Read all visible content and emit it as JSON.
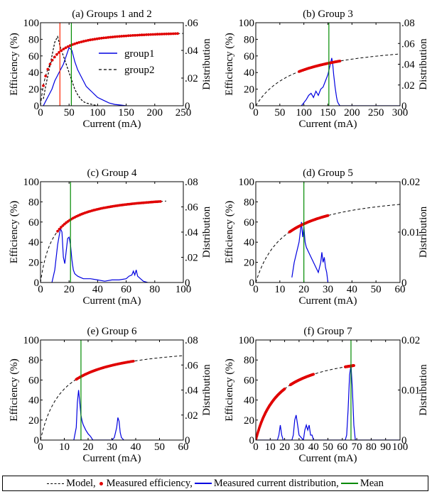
{
  "colors": {
    "model": "#000000",
    "measured": "#e00000",
    "distribution": "#0000e0",
    "mean": "#008a00",
    "second_line": "#ff2200"
  },
  "legend": {
    "model": "Model,",
    "measured": "Measured efficiency,",
    "distribution": "Measured current distribution,",
    "mean": "Mean"
  },
  "chart_data": [
    {
      "type": "line",
      "title": "(a) Groups 1 and 2",
      "xlabel": "Current (mA)",
      "ylabel": "Efficiency (%)",
      "y2label": "Distribution",
      "xlim": [
        0,
        250
      ],
      "ylim": [
        0,
        100
      ],
      "y2lim": [
        0,
        0.06
      ],
      "xticks": [
        0,
        50,
        100,
        150,
        200,
        250
      ],
      "yticks": [
        0,
        20,
        40,
        60,
        80,
        100
      ],
      "y2ticks": [
        0,
        0.02,
        0.04,
        0.06
      ],
      "xtick_labels": [
        "0",
        "50",
        "100",
        "150",
        "200",
        "250"
      ],
      "ytick_labels": [
        "0",
        "20",
        "40",
        "60",
        "80",
        "100"
      ],
      "y2tick_labels": [
        "0",
        ".02",
        ".04",
        ".06"
      ],
      "model": {
        "a": 92,
        "b": 14,
        "xmax": 250
      },
      "measured_range": [
        [
          5,
          240
        ]
      ],
      "means": [
        {
          "x": 34,
          "color": "second"
        },
        {
          "x": 54,
          "color": "mean"
        }
      ],
      "series": [
        {
          "name": "group1",
          "style": "solid",
          "x": [
            5,
            10,
            15,
            20,
            25,
            30,
            35,
            40,
            45,
            50,
            55,
            60,
            65,
            70,
            75,
            80,
            85,
            90,
            95,
            100,
            110,
            120,
            130,
            140,
            150
          ],
          "y": [
            0,
            0.004,
            0.008,
            0.012,
            0.018,
            0.022,
            0.026,
            0.03,
            0.036,
            0.042,
            0.04,
            0.032,
            0.026,
            0.022,
            0.018,
            0.014,
            0.012,
            0.01,
            0.008,
            0.006,
            0.004,
            0.002,
            0.001,
            0.0005,
            0
          ]
        },
        {
          "name": "group2",
          "style": "dashed",
          "x": [
            5,
            10,
            15,
            20,
            25,
            30,
            35,
            40,
            45,
            50,
            55,
            60,
            65,
            70,
            75,
            80,
            90,
            100
          ],
          "y": [
            0.005,
            0.016,
            0.026,
            0.036,
            0.046,
            0.05,
            0.042,
            0.036,
            0.03,
            0.024,
            0.018,
            0.012,
            0.008,
            0.005,
            0.003,
            0.002,
            0.001,
            0
          ]
        }
      ],
      "legend": "inside"
    },
    {
      "type": "line",
      "title": "(b) Group 3",
      "xlabel": "Current (mA)",
      "ylabel": "Efficiency (%)",
      "y2label": "Distribution",
      "xlim": [
        0,
        300
      ],
      "ylim": [
        0,
        100
      ],
      "y2lim": [
        0,
        0.08
      ],
      "xticks": [
        0,
        50,
        100,
        150,
        200,
        250,
        300
      ],
      "yticks": [
        0,
        20,
        40,
        60,
        80,
        100
      ],
      "y2ticks": [
        0,
        0.02,
        0.04,
        0.06,
        0.08
      ],
      "xtick_labels": [
        "0",
        "50",
        "100",
        "150",
        "200",
        "250",
        "300"
      ],
      "ytick_labels": [
        "0",
        "20",
        "40",
        "60",
        "80",
        "100"
      ],
      "y2tick_labels": [
        "0",
        ".02",
        ".04",
        ".06",
        ".08"
      ],
      "model": {
        "a": 80,
        "b": 85,
        "xmax": 300
      },
      "measured_range": [
        [
          90,
          175
        ]
      ],
      "means": [
        {
          "x": 152,
          "color": "mean"
        }
      ],
      "series": [
        {
          "name": "",
          "style": "solid",
          "x": [
            95,
            100,
            105,
            110,
            115,
            120,
            125,
            130,
            135,
            140,
            145,
            150,
            155,
            158,
            160,
            162,
            165,
            168,
            170,
            172,
            175,
            180,
            200,
            250,
            300
          ],
          "y": [
            0,
            0.003,
            0.006,
            0.01,
            0.012,
            0.008,
            0.014,
            0.01,
            0.016,
            0.018,
            0.024,
            0.03,
            0.04,
            0.046,
            0.04,
            0.03,
            0.018,
            0.008,
            0.004,
            0.002,
            0,
            0,
            0,
            0,
            0
          ]
        }
      ]
    },
    {
      "type": "line",
      "title": "(c) Group 4",
      "xlabel": "Current (mA)",
      "ylabel": "Efficiency (%)",
      "y2label": "Distribution",
      "xlim": [
        0,
        100
      ],
      "ylim": [
        0,
        100
      ],
      "y2lim": [
        0,
        0.08
      ],
      "xticks": [
        0,
        20,
        40,
        60,
        80,
        100
      ],
      "yticks": [
        0,
        20,
        40,
        60,
        80,
        100
      ],
      "y2ticks": [
        0,
        0.02,
        0.04,
        0.06,
        0.08
      ],
      "xtick_labels": [
        "0",
        "20",
        "40",
        "60",
        "80",
        "100"
      ],
      "ytick_labels": [
        "0",
        "20",
        "40",
        "60",
        "80",
        "100"
      ],
      "y2tick_labels": [
        "0",
        ".02",
        ".04",
        ".06",
        ".08"
      ],
      "model": {
        "a": 89,
        "b": 9,
        "xmax": 88
      },
      "measured_range": [
        [
          12,
          84
        ]
      ],
      "means": [
        {
          "x": 21,
          "color": "mean"
        }
      ],
      "series": [
        {
          "name": "",
          "style": "solid",
          "x": [
            8,
            10,
            12,
            14,
            15,
            16,
            17,
            18,
            19,
            20,
            21,
            22,
            23,
            24,
            25,
            26,
            28,
            30,
            35,
            40,
            45,
            50,
            55,
            60,
            62,
            64,
            65,
            66,
            67,
            68,
            70,
            72,
            75
          ],
          "y": [
            0,
            0.01,
            0.03,
            0.043,
            0.04,
            0.02,
            0.015,
            0.025,
            0.035,
            0.036,
            0.03,
            0.018,
            0.01,
            0.007,
            0.006,
            0.005,
            0.004,
            0.003,
            0.003,
            0.002,
            0.001,
            0.002,
            0.002,
            0.003,
            0.005,
            0.006,
            0.009,
            0.006,
            0.01,
            0.005,
            0.003,
            0.001,
            0
          ]
        }
      ]
    },
    {
      "type": "line",
      "title": "(d) Group 5",
      "xlabel": "Current (mA)",
      "ylabel": "Efficiency (%)",
      "y2label": "Distribution",
      "xlim": [
        0,
        60
      ],
      "ylim": [
        0,
        100
      ],
      "y2lim": [
        0,
        0.02
      ],
      "xticks": [
        0,
        10,
        20,
        30,
        40,
        50,
        60
      ],
      "yticks": [
        0,
        20,
        40,
        60,
        80,
        100
      ],
      "y2ticks": [
        0,
        0.01,
        0.02
      ],
      "xtick_labels": [
        "0",
        "10",
        "20",
        "30",
        "40",
        "50",
        "60"
      ],
      "ytick_labels": [
        "0",
        "20",
        "40",
        "60",
        "80",
        "100"
      ],
      "y2tick_labels": [
        "0",
        "0.01",
        "0.02"
      ],
      "model": {
        "a": 93,
        "b": 12,
        "xmax": 60
      },
      "measured_range": [
        [
          14,
          30
        ]
      ],
      "means": [
        {
          "x": 20,
          "color": "mean"
        }
      ],
      "series": [
        {
          "name": "",
          "style": "solid",
          "x": [
            15,
            16,
            17,
            18,
            19,
            19.5,
            20,
            20.5,
            21,
            22,
            23,
            24,
            25,
            26,
            27,
            27.5,
            28,
            28.5,
            29,
            29.5,
            30
          ],
          "y": [
            0.001,
            0.004,
            0.006,
            0.008,
            0.012,
            0.009,
            0.011,
            0.008,
            0.007,
            0.006,
            0.005,
            0.004,
            0.003,
            0.002,
            0.004,
            0.006,
            0.004,
            0.005,
            0.003,
            0.002,
            0
          ]
        }
      ]
    },
    {
      "type": "line",
      "title": "(e) Group 6",
      "xlabel": "Current (mA)",
      "ylabel": "Efficiency (%)",
      "y2label": "Distribution",
      "xlim": [
        0,
        60
      ],
      "ylim": [
        0,
        100
      ],
      "y2lim": [
        0,
        0.08
      ],
      "xticks": [
        0,
        10,
        20,
        30,
        40,
        50,
        60
      ],
      "yticks": [
        0,
        20,
        40,
        60,
        80,
        100
      ],
      "y2ticks": [
        0,
        0.02,
        0.04,
        0.06,
        0.08
      ],
      "xtick_labels": [
        "0",
        "10",
        "20",
        "30",
        "40",
        "50",
        "60"
      ],
      "ytick_labels": [
        "0",
        "20",
        "40",
        "60",
        "80",
        "100"
      ],
      "y2tick_labels": [
        "0",
        ".02",
        ".04",
        ".06",
        ".08"
      ],
      "model": {
        "a": 97,
        "b": 9,
        "xmax": 60
      },
      "measured_range": [
        [
          15,
          39
        ]
      ],
      "means": [
        {
          "x": 17,
          "color": "mean"
        }
      ],
      "series": [
        {
          "name": "",
          "style": "solid",
          "x": [
            14,
            15,
            15.5,
            16,
            16.5,
            17,
            17.5,
            18,
            19,
            20,
            21,
            22,
            30,
            31,
            32,
            32.5,
            33,
            33.5,
            34,
            35
          ],
          "y": [
            0,
            0.01,
            0.03,
            0.04,
            0.03,
            0.02,
            0.015,
            0.012,
            0.008,
            0.005,
            0.003,
            0,
            0,
            0.002,
            0.01,
            0.018,
            0.015,
            0.006,
            0.002,
            0
          ]
        }
      ]
    },
    {
      "type": "line",
      "title": "(f) Group 7",
      "xlabel": "Current (mA)",
      "ylabel": "Efficiency (%)",
      "y2label": "Distribution",
      "xlim": [
        0,
        100
      ],
      "ylim": [
        0,
        100
      ],
      "y2lim": [
        0,
        0.02
      ],
      "xticks": [
        0,
        10,
        20,
        30,
        40,
        50,
        60,
        70,
        80,
        90,
        100
      ],
      "yticks": [
        0,
        20,
        40,
        60,
        80,
        100
      ],
      "y2ticks": [
        0,
        0.01,
        0.02
      ],
      "xtick_labels": [
        "0",
        "10",
        "20",
        "30",
        "40",
        "50",
        "60",
        "70",
        "80",
        "90",
        "100"
      ],
      "ytick_labels": [
        "0",
        "20",
        "40",
        "60",
        "80",
        "100"
      ],
      "y2tick_labels": [
        "0",
        "0.01",
        "0.02"
      ],
      "model": {
        "a": 92,
        "b": 16,
        "xmax": 68
      },
      "measured_range": [
        [
          0,
          20
        ],
        [
          24,
          40
        ],
        [
          62,
          68
        ]
      ],
      "means": [
        {
          "x": 66,
          "color": "mean"
        }
      ],
      "series": [
        {
          "name": "",
          "style": "solid",
          "x": [
            0,
            15,
            16,
            17,
            18,
            19,
            25,
            26,
            27,
            28,
            29,
            30,
            33,
            34,
            35,
            36,
            37,
            38,
            39,
            40,
            62,
            63,
            64,
            65,
            66,
            67,
            68,
            69,
            100
          ],
          "y": [
            0,
            0,
            0.001,
            0.003,
            0.001,
            0,
            0,
            0.001,
            0.004,
            0.005,
            0.003,
            0.001,
            0,
            0.002,
            0.003,
            0.002,
            0.003,
            0.001,
            0.001,
            0,
            0,
            0.001,
            0.006,
            0.013,
            0.015,
            0.01,
            0.003,
            0,
            0
          ]
        }
      ]
    }
  ]
}
